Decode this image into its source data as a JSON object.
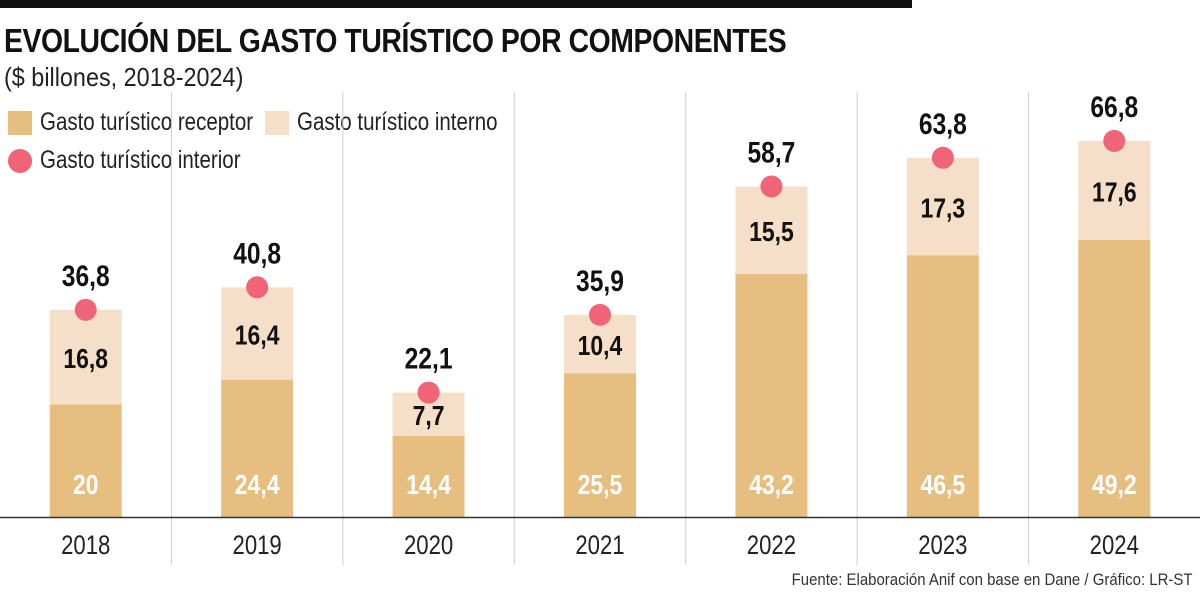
{
  "chart_data": {
    "type": "bar",
    "stacked": true,
    "title": "EVOLUCIÓN DEL GASTO TURÍSTICO POR COMPONENTES",
    "subtitle": "($ billones, 2018-2024)",
    "categories": [
      "2018",
      "2019",
      "2020",
      "2021",
      "2022",
      "2023",
      "2024"
    ],
    "series": [
      {
        "name": "Gasto turístico receptor",
        "kind": "bar",
        "color": "#e6bf80",
        "values": [
          20,
          24.4,
          14.4,
          25.5,
          43.2,
          46.5,
          49.2
        ],
        "labels": [
          "20",
          "24,4",
          "14,4",
          "25,5",
          "43,2",
          "46,5",
          "49,2"
        ]
      },
      {
        "name": "Gasto turístico interno",
        "kind": "bar",
        "color": "#f5dfc8",
        "values": [
          16.8,
          16.4,
          7.7,
          10.4,
          15.5,
          17.3,
          17.6
        ],
        "labels": [
          "16,8",
          "16,4",
          "7,7",
          "10,4",
          "15,5",
          "17,3",
          "17,6"
        ]
      },
      {
        "name": "Gasto turístico interior",
        "kind": "point",
        "color": "#ef6477",
        "values": [
          36.8,
          40.8,
          22.1,
          35.9,
          58.7,
          63.8,
          66.8
        ],
        "labels": [
          "36,8",
          "40,8",
          "22,1",
          "35,9",
          "58,7",
          "63,8",
          "66,8"
        ]
      }
    ],
    "xlabel": "",
    "ylabel": "",
    "ylim": [
      0,
      80
    ],
    "grid": false,
    "legend": "top-left"
  },
  "source": "Fuente: Elaboración Anif con base en Dane / Gráfico: LR-ST"
}
